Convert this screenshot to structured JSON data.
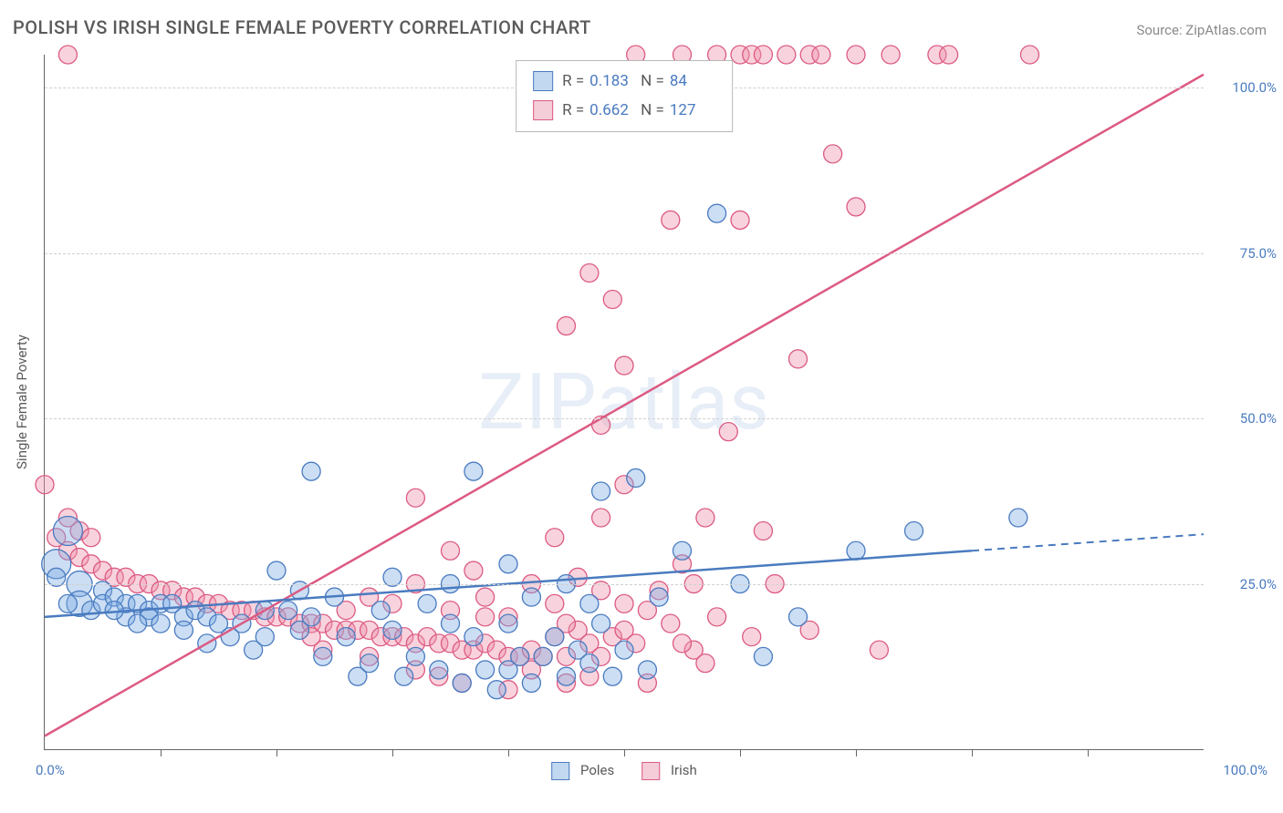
{
  "title": "POLISH VS IRISH SINGLE FEMALE POVERTY CORRELATION CHART",
  "source": "Source: ZipAtlas.com",
  "y_axis_label": "Single Female Poverty",
  "watermark": "ZIPatlas",
  "x_origin": "0.0%",
  "x_max": "100.0%",
  "colors": {
    "poles_fill": "rgba(124,172,228,0.40)",
    "poles_stroke": "#4a7bc0",
    "irish_fill": "rgba(238,145,170,0.40)",
    "irish_stroke": "#dc5a82",
    "poles_swatch_fill": "#c2d8f0",
    "poles_swatch_border": "#4a7bc0",
    "irish_swatch_fill": "#f5cdd8",
    "irish_swatch_border": "#dc5a82",
    "grid": "#d0d0d0",
    "axis": "#666666",
    "tick_label": "#4a7bc0",
    "text": "#5a5a5a",
    "value_text": "#4a7bc0"
  },
  "chart": {
    "type": "scatter",
    "xlim": [
      0,
      100
    ],
    "ylim": [
      0,
      105
    ],
    "y_ticks": [
      25,
      50,
      75,
      100
    ],
    "y_tick_labels": [
      "25.0%",
      "50.0%",
      "75.0%",
      "100.0%"
    ],
    "x_minor_ticks": [
      10,
      20,
      30,
      40,
      50,
      60,
      70,
      80,
      90
    ],
    "marker_radius": 10,
    "marker_radius_big": 16
  },
  "legend_top": {
    "rows": [
      {
        "swatch": "poles",
        "r_label": "R =",
        "r_value": "0.183",
        "n_label": "N =",
        "n_value": "84"
      },
      {
        "swatch": "irish",
        "r_label": "R =",
        "r_value": "0.662",
        "n_label": "N =",
        "n_value": "127"
      }
    ]
  },
  "legend_bottom": {
    "items": [
      {
        "swatch": "poles",
        "label": "Poles"
      },
      {
        "swatch": "irish",
        "label": "Irish"
      }
    ]
  },
  "trend_lines": {
    "poles": {
      "x1": 0,
      "y1": 20,
      "x2": 80,
      "y2": 30,
      "dash_x2": 100,
      "dash_y2": 32.5
    },
    "irish": {
      "x1": 0,
      "y1": 2,
      "x2": 100,
      "y2": 102
    }
  },
  "series": {
    "poles": [
      {
        "x": 2,
        "y": 33,
        "r": 16
      },
      {
        "x": 1,
        "y": 28,
        "r": 16
      },
      {
        "x": 3,
        "y": 25,
        "r": 14
      },
      {
        "x": 3,
        "y": 22,
        "r": 14
      },
      {
        "x": 1,
        "y": 26
      },
      {
        "x": 2,
        "y": 22
      },
      {
        "x": 4,
        "y": 21
      },
      {
        "x": 5,
        "y": 24
      },
      {
        "x": 5,
        "y": 22
      },
      {
        "x": 6,
        "y": 23
      },
      {
        "x": 7,
        "y": 22
      },
      {
        "x": 7,
        "y": 20
      },
      {
        "x": 8,
        "y": 22
      },
      {
        "x": 9,
        "y": 21
      },
      {
        "x": 10,
        "y": 22
      },
      {
        "x": 11,
        "y": 22
      },
      {
        "x": 12,
        "y": 20
      },
      {
        "x": 13,
        "y": 21
      },
      {
        "x": 14,
        "y": 20
      },
      {
        "x": 15,
        "y": 19
      },
      {
        "x": 9,
        "y": 20
      },
      {
        "x": 10,
        "y": 19
      },
      {
        "x": 6,
        "y": 21
      },
      {
        "x": 8,
        "y": 19
      },
      {
        "x": 12,
        "y": 18
      },
      {
        "x": 14,
        "y": 16
      },
      {
        "x": 16,
        "y": 17
      },
      {
        "x": 17,
        "y": 19
      },
      {
        "x": 18,
        "y": 15
      },
      {
        "x": 19,
        "y": 21
      },
      {
        "x": 19,
        "y": 17
      },
      {
        "x": 20,
        "y": 27
      },
      {
        "x": 21,
        "y": 21
      },
      {
        "x": 22,
        "y": 24
      },
      {
        "x": 22,
        "y": 18
      },
      {
        "x": 23,
        "y": 20
      },
      {
        "x": 24,
        "y": 14
      },
      {
        "x": 25,
        "y": 23
      },
      {
        "x": 26,
        "y": 17
      },
      {
        "x": 27,
        "y": 11
      },
      {
        "x": 28,
        "y": 13
      },
      {
        "x": 29,
        "y": 21
      },
      {
        "x": 30,
        "y": 18
      },
      {
        "x": 31,
        "y": 11
      },
      {
        "x": 32,
        "y": 14
      },
      {
        "x": 33,
        "y": 22
      },
      {
        "x": 34,
        "y": 12
      },
      {
        "x": 35,
        "y": 19
      },
      {
        "x": 36,
        "y": 10
      },
      {
        "x": 37,
        "y": 17
      },
      {
        "x": 38,
        "y": 12
      },
      {
        "x": 39,
        "y": 9
      },
      {
        "x": 40,
        "y": 12
      },
      {
        "x": 40,
        "y": 19
      },
      {
        "x": 41,
        "y": 14
      },
      {
        "x": 42,
        "y": 10
      },
      {
        "x": 43,
        "y": 14
      },
      {
        "x": 44,
        "y": 17
      },
      {
        "x": 45,
        "y": 11
      },
      {
        "x": 46,
        "y": 15
      },
      {
        "x": 47,
        "y": 13
      },
      {
        "x": 48,
        "y": 19
      },
      {
        "x": 49,
        "y": 11
      },
      {
        "x": 50,
        "y": 15
      },
      {
        "x": 51,
        "y": 41
      },
      {
        "x": 52,
        "y": 12
      },
      {
        "x": 23,
        "y": 42
      },
      {
        "x": 30,
        "y": 26
      },
      {
        "x": 35,
        "y": 25
      },
      {
        "x": 37,
        "y": 42
      },
      {
        "x": 40,
        "y": 28
      },
      {
        "x": 45,
        "y": 25
      },
      {
        "x": 48,
        "y": 39
      },
      {
        "x": 53,
        "y": 23
      },
      {
        "x": 55,
        "y": 30
      },
      {
        "x": 58,
        "y": 81
      },
      {
        "x": 60,
        "y": 25
      },
      {
        "x": 62,
        "y": 14
      },
      {
        "x": 65,
        "y": 20
      },
      {
        "x": 70,
        "y": 30
      },
      {
        "x": 75,
        "y": 33
      },
      {
        "x": 84,
        "y": 35
      },
      {
        "x": 42,
        "y": 23
      },
      {
        "x": 47,
        "y": 22
      }
    ],
    "irish": [
      {
        "x": 0,
        "y": 40
      },
      {
        "x": 1,
        "y": 32
      },
      {
        "x": 2,
        "y": 30
      },
      {
        "x": 3,
        "y": 29
      },
      {
        "x": 4,
        "y": 28
      },
      {
        "x": 5,
        "y": 27
      },
      {
        "x": 6,
        "y": 26
      },
      {
        "x": 7,
        "y": 26
      },
      {
        "x": 8,
        "y": 25
      },
      {
        "x": 9,
        "y": 25
      },
      {
        "x": 10,
        "y": 24
      },
      {
        "x": 11,
        "y": 24
      },
      {
        "x": 12,
        "y": 23
      },
      {
        "x": 13,
        "y": 23
      },
      {
        "x": 14,
        "y": 22
      },
      {
        "x": 15,
        "y": 22
      },
      {
        "x": 16,
        "y": 21
      },
      {
        "x": 17,
        "y": 21
      },
      {
        "x": 18,
        "y": 21
      },
      {
        "x": 19,
        "y": 20
      },
      {
        "x": 20,
        "y": 20
      },
      {
        "x": 21,
        "y": 20
      },
      {
        "x": 22,
        "y": 19
      },
      {
        "x": 23,
        "y": 19
      },
      {
        "x": 24,
        "y": 19
      },
      {
        "x": 25,
        "y": 18
      },
      {
        "x": 26,
        "y": 18
      },
      {
        "x": 27,
        "y": 18
      },
      {
        "x": 28,
        "y": 18
      },
      {
        "x": 29,
        "y": 17
      },
      {
        "x": 30,
        "y": 17
      },
      {
        "x": 31,
        "y": 17
      },
      {
        "x": 32,
        "y": 16
      },
      {
        "x": 33,
        "y": 17
      },
      {
        "x": 34,
        "y": 16
      },
      {
        "x": 35,
        "y": 16
      },
      {
        "x": 36,
        "y": 15
      },
      {
        "x": 37,
        "y": 15
      },
      {
        "x": 38,
        "y": 16
      },
      {
        "x": 39,
        "y": 15
      },
      {
        "x": 40,
        "y": 14
      },
      {
        "x": 41,
        "y": 14
      },
      {
        "x": 42,
        "y": 15
      },
      {
        "x": 43,
        "y": 14
      },
      {
        "x": 44,
        "y": 17
      },
      {
        "x": 45,
        "y": 14
      },
      {
        "x": 46,
        "y": 18
      },
      {
        "x": 47,
        "y": 16
      },
      {
        "x": 48,
        "y": 14
      },
      {
        "x": 49,
        "y": 17
      },
      {
        "x": 50,
        "y": 18
      },
      {
        "x": 51,
        "y": 16
      },
      {
        "x": 52,
        "y": 21
      },
      {
        "x": 53,
        "y": 24
      },
      {
        "x": 54,
        "y": 19
      },
      {
        "x": 55,
        "y": 28
      },
      {
        "x": 28,
        "y": 23
      },
      {
        "x": 30,
        "y": 22
      },
      {
        "x": 32,
        "y": 25
      },
      {
        "x": 35,
        "y": 21
      },
      {
        "x": 37,
        "y": 27
      },
      {
        "x": 38,
        "y": 23
      },
      {
        "x": 40,
        "y": 20
      },
      {
        "x": 42,
        "y": 25
      },
      {
        "x": 44,
        "y": 22
      },
      {
        "x": 46,
        "y": 26
      },
      {
        "x": 48,
        "y": 24
      },
      {
        "x": 50,
        "y": 22
      },
      {
        "x": 35,
        "y": 30
      },
      {
        "x": 32,
        "y": 38
      },
      {
        "x": 44,
        "y": 32
      },
      {
        "x": 48,
        "y": 35
      },
      {
        "x": 50,
        "y": 40
      },
      {
        "x": 45,
        "y": 64
      },
      {
        "x": 47,
        "y": 72
      },
      {
        "x": 49,
        "y": 68
      },
      {
        "x": 50,
        "y": 58
      },
      {
        "x": 54,
        "y": 80
      },
      {
        "x": 48,
        "y": 49
      },
      {
        "x": 36,
        "y": 10
      },
      {
        "x": 40,
        "y": 9
      },
      {
        "x": 42,
        "y": 12
      },
      {
        "x": 45,
        "y": 10
      },
      {
        "x": 47,
        "y": 11
      },
      {
        "x": 52,
        "y": 10
      },
      {
        "x": 56,
        "y": 15
      },
      {
        "x": 57,
        "y": 35
      },
      {
        "x": 58,
        "y": 20
      },
      {
        "x": 59,
        "y": 48
      },
      {
        "x": 60,
        "y": 80
      },
      {
        "x": 61,
        "y": 17
      },
      {
        "x": 62,
        "y": 33
      },
      {
        "x": 63,
        "y": 25
      },
      {
        "x": 65,
        "y": 59
      },
      {
        "x": 66,
        "y": 18
      },
      {
        "x": 68,
        "y": 90
      },
      {
        "x": 70,
        "y": 82
      },
      {
        "x": 72,
        "y": 15
      },
      {
        "x": 51,
        "y": 105
      },
      {
        "x": 55,
        "y": 105
      },
      {
        "x": 58,
        "y": 105
      },
      {
        "x": 60,
        "y": 105
      },
      {
        "x": 61,
        "y": 105
      },
      {
        "x": 62,
        "y": 105
      },
      {
        "x": 64,
        "y": 105
      },
      {
        "x": 66,
        "y": 105
      },
      {
        "x": 67,
        "y": 105
      },
      {
        "x": 70,
        "y": 105
      },
      {
        "x": 73,
        "y": 105
      },
      {
        "x": 77,
        "y": 105
      },
      {
        "x": 78,
        "y": 105
      },
      {
        "x": 85,
        "y": 105
      },
      {
        "x": 56,
        "y": 25
      },
      {
        "x": 45,
        "y": 19
      },
      {
        "x": 38,
        "y": 20
      },
      {
        "x": 34,
        "y": 11
      },
      {
        "x": 32,
        "y": 12
      },
      {
        "x": 28,
        "y": 14
      },
      {
        "x": 26,
        "y": 21
      },
      {
        "x": 24,
        "y": 15
      },
      {
        "x": 23,
        "y": 17
      },
      {
        "x": 3,
        "y": 33
      },
      {
        "x": 4,
        "y": 32
      },
      {
        "x": 2,
        "y": 35
      },
      {
        "x": 2,
        "y": 105
      },
      {
        "x": 55,
        "y": 16
      },
      {
        "x": 57,
        "y": 13
      }
    ]
  }
}
